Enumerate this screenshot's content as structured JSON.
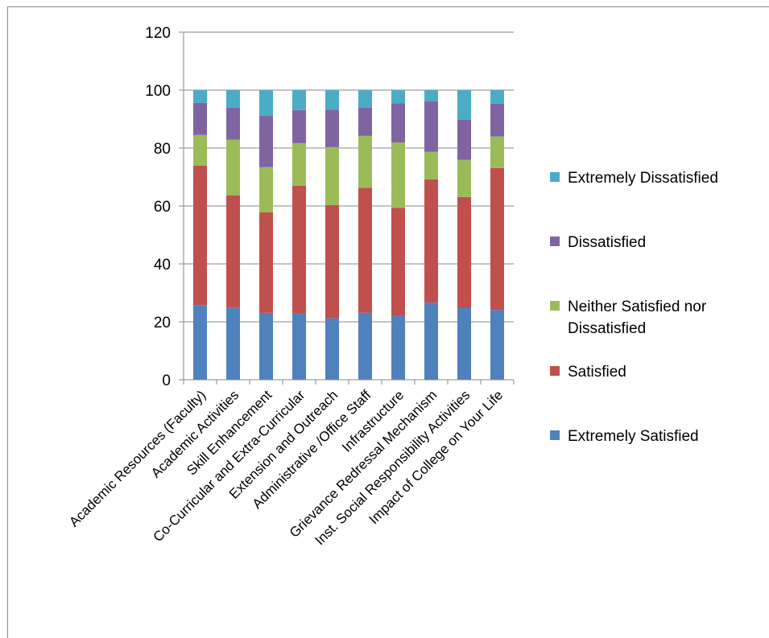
{
  "chart_data": {
    "type": "bar",
    "stacked": true,
    "categories": [
      "Academic Resources (Faculty)",
      "Academic Activities",
      "Skill Enhancement",
      "Co-Curricular and Extra-Curricular",
      "Extension and Outreach",
      "Administrative /Office Staff",
      "Infrastructure",
      "Grievance Redressal Mechanism",
      "Inst. Social Responsibility Activities",
      "Impact of College on Your Life"
    ],
    "series": [
      {
        "name": "Extremely Satisfied",
        "color": "#4f81bd",
        "values": [
          25.8,
          24.8,
          23.1,
          22.8,
          21.2,
          23.1,
          22.1,
          26.6,
          25.0,
          24.1
        ]
      },
      {
        "name": "Satisfied",
        "color": "#c0504d",
        "values": [
          48.1,
          38.9,
          34.7,
          44.2,
          39.1,
          43.2,
          37.2,
          42.6,
          38.1,
          49.0
        ]
      },
      {
        "name": "Neither Satisfied nor Dissatisfied",
        "color": "#9bbb59",
        "values": [
          10.6,
          19.2,
          15.6,
          14.7,
          20.0,
          17.9,
          22.6,
          9.5,
          12.8,
          10.9
        ]
      },
      {
        "name": "Dissatisfied",
        "color": "#8064a2",
        "values": [
          11.1,
          11.0,
          17.7,
          11.4,
          13.0,
          9.7,
          13.6,
          17.4,
          13.9,
          11.3
        ]
      },
      {
        "name": "Extremely Dissatisfied",
        "color": "#4bacc6",
        "values": [
          4.4,
          6.1,
          8.9,
          6.9,
          6.7,
          6.1,
          4.5,
          3.9,
          10.2,
          4.7
        ]
      }
    ],
    "yticks": [
      "0",
      "20",
      "40",
      "60",
      "80",
      "100",
      "120"
    ],
    "ylim": [
      0,
      120
    ],
    "grid": true,
    "legend_position": "right",
    "legend_order": [
      "Extremely Dissatisfied",
      "Dissatisfied",
      "Neither Satisfied nor Dissatisfied",
      "Satisfied",
      "Extremely Satisfied"
    ]
  }
}
